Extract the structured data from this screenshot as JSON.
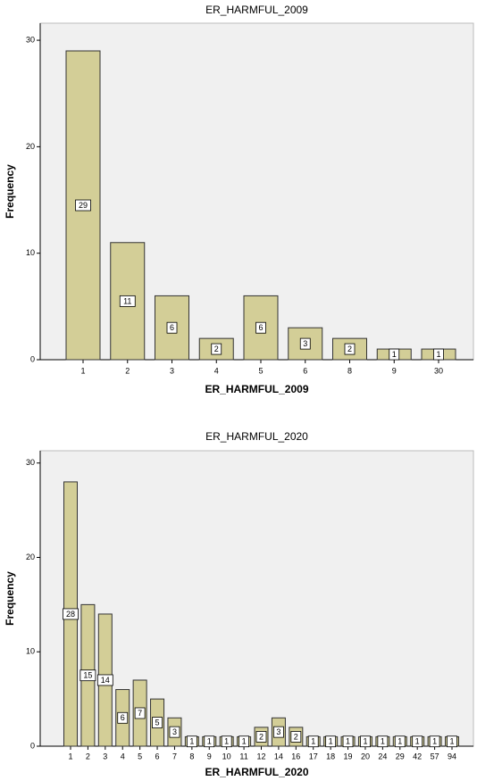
{
  "chart_data": [
    {
      "type": "bar",
      "title": "ER_HARMFUL_2009",
      "xlabel": "ER_HARMFUL_2009",
      "ylabel": "Frequency",
      "categories": [
        "1",
        "2",
        "3",
        "4",
        "5",
        "6",
        "8",
        "9",
        "30"
      ],
      "values": [
        29,
        11,
        6,
        2,
        6,
        3,
        2,
        1,
        1
      ],
      "color": "#d3ce97",
      "ylim": [
        0,
        31.6
      ],
      "yticks": [
        0,
        10,
        20,
        30
      ]
    },
    {
      "type": "bar",
      "title": "ER_HARMFUL_2020",
      "xlabel": "ER_HARMFUL_2020",
      "ylabel": "Frequency",
      "categories": [
        "1",
        "2",
        "3",
        "4",
        "5",
        "6",
        "7",
        "8",
        "9",
        "10",
        "11",
        "12",
        "14",
        "16",
        "17",
        "18",
        "19",
        "20",
        "24",
        "29",
        "42",
        "57",
        "94"
      ],
      "values": [
        28,
        15,
        14,
        6,
        7,
        5,
        3,
        1,
        1,
        1,
        1,
        2,
        3,
        2,
        1,
        1,
        1,
        1,
        1,
        1,
        1,
        1,
        1
      ],
      "color": "#d3ce97",
      "ylim": [
        0,
        31.3
      ],
      "yticks": [
        0,
        10,
        20,
        30
      ]
    }
  ]
}
